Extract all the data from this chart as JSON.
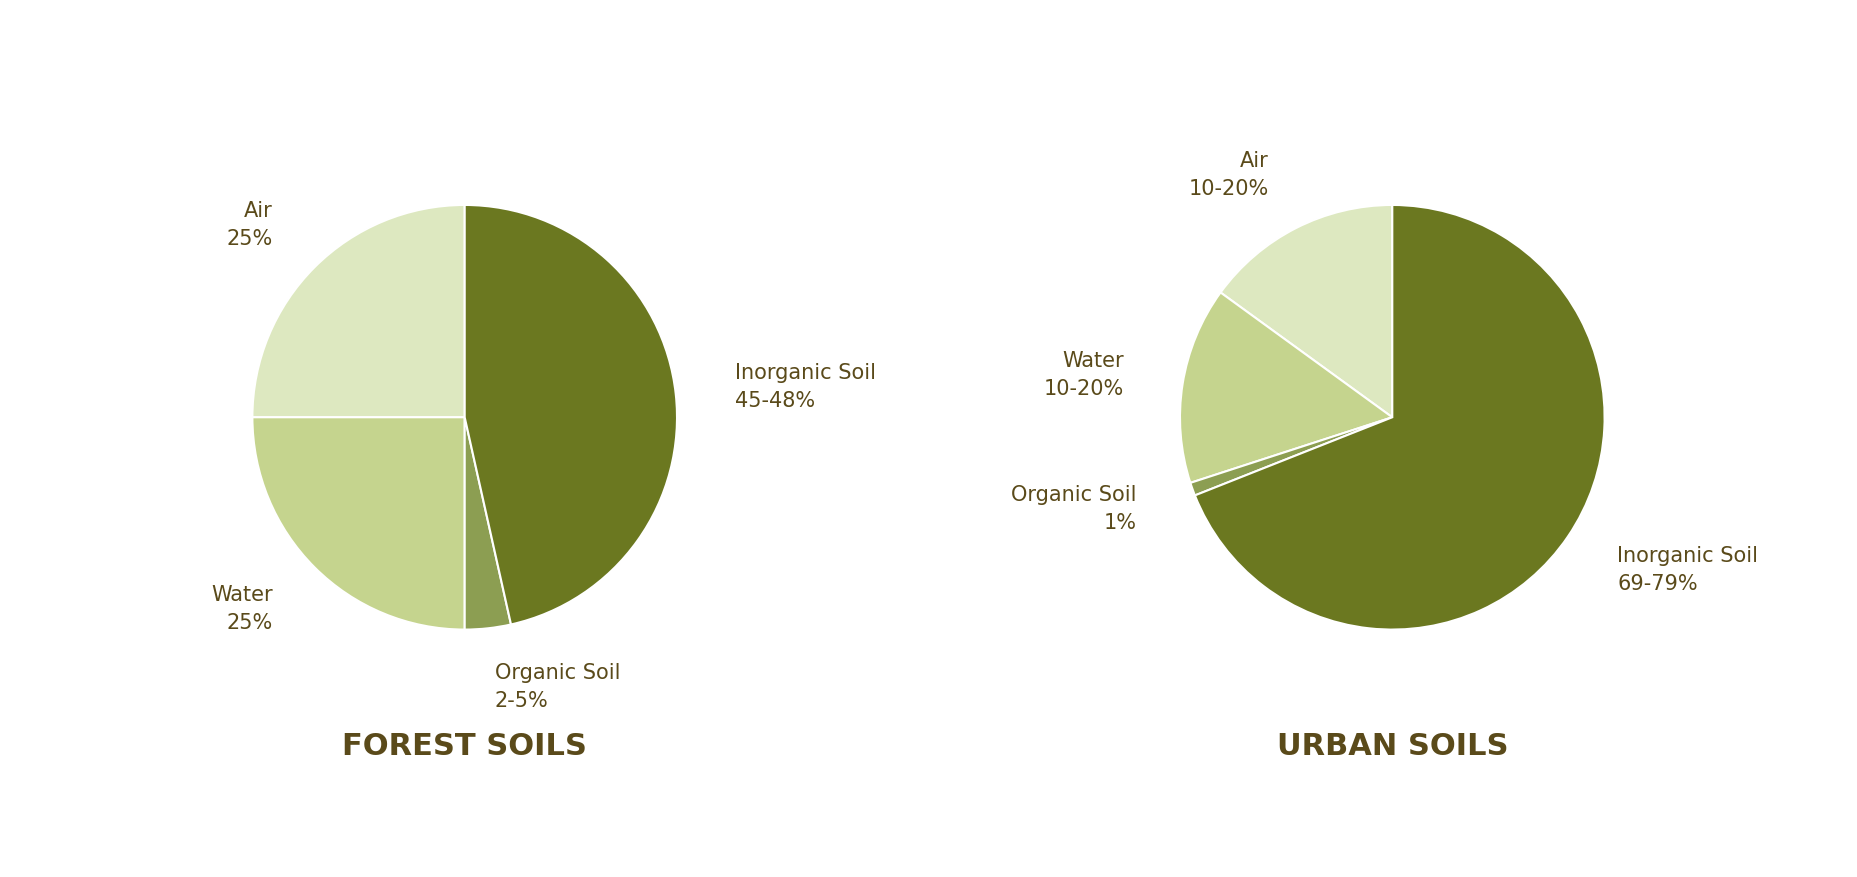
{
  "forest": {
    "title": "FOREST SOILS",
    "label_names": [
      "Air",
      "Water",
      "Organic Soil",
      "Inorganic Soil"
    ],
    "label_percents": [
      "25%",
      "25%",
      "2-5%",
      "45-48%"
    ],
    "sizes": [
      25,
      25,
      3.5,
      46.5
    ],
    "colors": [
      "#dde8c0",
      "#c5d48e",
      "#8c9e52",
      "#6b7820"
    ],
    "startangle": 90
  },
  "urban": {
    "title": "URBAN SOILS",
    "label_names": [
      "Air",
      "Water",
      "Organic Soil",
      "Inorganic Soil"
    ],
    "label_percents": [
      "10-20%",
      "10-20%",
      "1%",
      "69-79%"
    ],
    "sizes": [
      15,
      15,
      1,
      69
    ],
    "colors": [
      "#dde8c0",
      "#c5d48e",
      "#8c9e52",
      "#6b7820"
    ],
    "startangle": 90
  },
  "text_color": "#5a4a1a",
  "label_fontsize": 15,
  "title_fontsize": 22,
  "background_color": "#ffffff"
}
